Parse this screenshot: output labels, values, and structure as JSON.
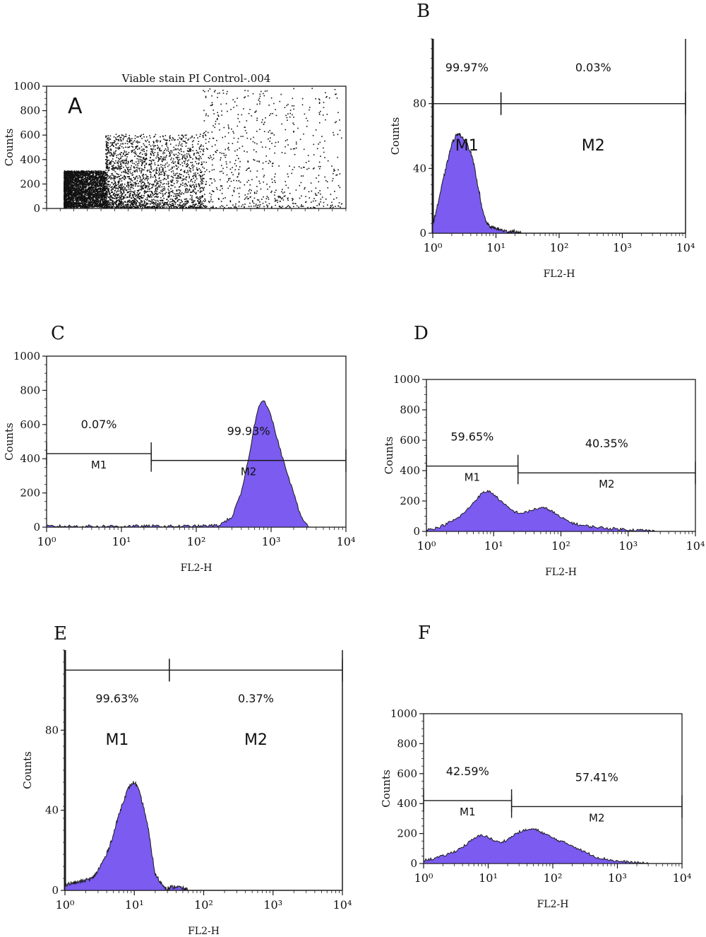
{
  "colors": {
    "fill": "#7b5bf0",
    "stroke": "#1a1a1a",
    "dot": "#111111",
    "background": "#ffffff"
  },
  "chart_data": [
    {
      "panel": "A",
      "type": "scatter",
      "title": "Viable stain PI Control-.004",
      "ylabel": "Counts",
      "xlabel": "",
      "ylim": [
        0,
        1000
      ],
      "yticks": [
        0,
        200,
        400,
        600,
        800,
        1000
      ],
      "ytick_labels": [
        "0",
        "200",
        "400",
        "600",
        "800",
        "1000"
      ],
      "grid": false,
      "density_regions": [
        {
          "x": [
            0,
            0.15
          ],
          "y": [
            0,
            300
          ],
          "density": "very high"
        },
        {
          "x": [
            0.15,
            0.5
          ],
          "y": [
            0,
            600
          ],
          "density": "medium"
        },
        {
          "x": [
            0.5,
            1
          ],
          "y": [
            0,
            1000
          ],
          "density": "low"
        }
      ]
    },
    {
      "panel": "B",
      "type": "area",
      "xscale": "log",
      "xlabel": "FL2-H",
      "ylabel": "Counts",
      "xlim": [
        1,
        10000
      ],
      "ylim": [
        0,
        120
      ],
      "yticks": [
        0,
        40,
        80
      ],
      "ytick_labels": [
        "0",
        "40",
        "80"
      ],
      "xtick_labels": [
        "10⁰",
        "10¹",
        "10²",
        "10³",
        "10⁴"
      ],
      "x": [
        1,
        1.2,
        1.5,
        1.8,
        2.0,
        2.3,
        2.6,
        3.0,
        3.5,
        4.0,
        4.5,
        5.0,
        5.5,
        6.0,
        7.0,
        8.0,
        10,
        12,
        15,
        20,
        25
      ],
      "values": [
        5,
        18,
        35,
        48,
        55,
        60,
        62,
        58,
        55,
        50,
        42,
        32,
        25,
        15,
        7,
        4,
        3,
        2,
        1,
        1,
        0
      ],
      "markers": [
        {
          "name": "M1",
          "x_range": [
            1,
            12
          ],
          "level": 80,
          "percent": "99.97%"
        },
        {
          "name": "M2",
          "x_range": [
            12,
            10000
          ],
          "level": 80,
          "percent": "0.03%"
        }
      ]
    },
    {
      "panel": "C",
      "type": "area",
      "xscale": "log",
      "xlabel": "FL2-H",
      "ylabel": "Counts",
      "xlim": [
        1,
        10000
      ],
      "ylim": [
        0,
        1000
      ],
      "yticks": [
        0,
        200,
        400,
        600,
        800,
        1000
      ],
      "ytick_labels": [
        "0",
        "200",
        "400",
        "600",
        "800",
        "1000"
      ],
      "xtick_labels": [
        "10⁰",
        "10¹",
        "10²",
        "10³",
        "10⁴"
      ],
      "x": [
        1,
        10,
        100,
        200,
        300,
        400,
        500,
        600,
        700,
        800,
        900,
        1000,
        1200,
        1500,
        2000,
        2500,
        3000,
        3500
      ],
      "values": [
        5,
        5,
        5,
        10,
        60,
        200,
        400,
        600,
        720,
        750,
        700,
        650,
        520,
        370,
        200,
        60,
        15,
        0
      ],
      "markers": [
        {
          "name": "M1",
          "x_range": [
            1,
            25
          ],
          "level": 430,
          "percent": "0.07%"
        },
        {
          "name": "M2",
          "x_range": [
            25,
            10000
          ],
          "level": 390,
          "percent": "99.93%"
        }
      ]
    },
    {
      "panel": "D",
      "type": "area",
      "xscale": "log",
      "xlabel": "FL2-H",
      "ylabel": "Counts",
      "xlim": [
        1,
        10000
      ],
      "ylim": [
        0,
        1000
      ],
      "yticks": [
        0,
        200,
        400,
        600,
        800,
        1000
      ],
      "ytick_labels": [
        "0",
        "200",
        "400",
        "600",
        "800",
        "1000"
      ],
      "xtick_labels": [
        "10⁰",
        "10¹",
        "10²",
        "10³",
        "10⁴"
      ],
      "x": [
        1,
        1.5,
        2,
        3,
        4,
        5,
        6,
        7,
        8,
        9,
        10,
        12,
        15,
        20,
        25,
        30,
        40,
        50,
        60,
        70,
        100,
        150,
        200,
        300,
        500,
        1000,
        2000,
        2500
      ],
      "values": [
        10,
        25,
        50,
        90,
        140,
        190,
        230,
        255,
        265,
        260,
        245,
        210,
        170,
        130,
        120,
        125,
        145,
        155,
        150,
        140,
        90,
        55,
        40,
        30,
        20,
        12,
        5,
        0
      ],
      "markers": [
        {
          "name": "M1",
          "x_range": [
            1,
            23
          ],
          "level": 430,
          "percent": "59.65%"
        },
        {
          "name": "M2",
          "x_range": [
            23,
            10000
          ],
          "level": 385,
          "percent": "40.35%"
        }
      ]
    },
    {
      "panel": "E",
      "type": "area",
      "xscale": "log",
      "xlabel": "FL2-H",
      "ylabel": "Counts",
      "xlim": [
        1,
        10000
      ],
      "ylim": [
        0,
        120
      ],
      "yticks": [
        0,
        40,
        80
      ],
      "ytick_labels": [
        "0",
        "40",
        "80"
      ],
      "xtick_labels": [
        "10⁰",
        "10¹",
        "10²",
        "10³",
        "10⁴"
      ],
      "x": [
        1,
        1.5,
        2,
        2.5,
        3,
        4,
        5,
        6,
        7,
        8,
        9,
        10,
        11,
        12,
        14,
        16,
        18,
        20,
        25,
        30,
        40,
        50,
        60
      ],
      "values": [
        3,
        4,
        5,
        6,
        10,
        18,
        28,
        38,
        45,
        50,
        53,
        54,
        52,
        48,
        40,
        30,
        18,
        8,
        3,
        1,
        2,
        1,
        0
      ],
      "markers": [
        {
          "name": "M1",
          "x_range": [
            1,
            32
          ],
          "level": 110,
          "percent": "99.63%"
        },
        {
          "name": "M2",
          "x_range": [
            32,
            10000
          ],
          "level": 110,
          "percent": "0.37%"
        }
      ]
    },
    {
      "panel": "F",
      "type": "area",
      "xscale": "log",
      "xlabel": "FL2-H",
      "ylabel": "Counts",
      "xlim": [
        1,
        10000
      ],
      "ylim": [
        0,
        1000
      ],
      "yticks": [
        0,
        200,
        400,
        600,
        800,
        1000
      ],
      "ytick_labels": [
        "0",
        "200",
        "400",
        "600",
        "800",
        "1000"
      ],
      "xtick_labels": [
        "10⁰",
        "10¹",
        "10²",
        "10³",
        "10⁴"
      ],
      "x": [
        1,
        1.5,
        2,
        3,
        4,
        5,
        6,
        7,
        8,
        9,
        10,
        12,
        15,
        20,
        25,
        30,
        40,
        50,
        60,
        70,
        100,
        150,
        200,
        300,
        500,
        1000,
        2000,
        3000
      ],
      "values": [
        20,
        35,
        50,
        80,
        110,
        140,
        165,
        180,
        190,
        185,
        175,
        155,
        140,
        160,
        190,
        210,
        225,
        230,
        220,
        205,
        170,
        140,
        120,
        80,
        40,
        15,
        5,
        0
      ],
      "markers": [
        {
          "name": "M1",
          "x_range": [
            1,
            23
          ],
          "level": 420,
          "percent": "42.59%"
        },
        {
          "name": "M2",
          "x_range": [
            23,
            10000
          ],
          "level": 380,
          "percent": "57.41%"
        }
      ]
    }
  ]
}
